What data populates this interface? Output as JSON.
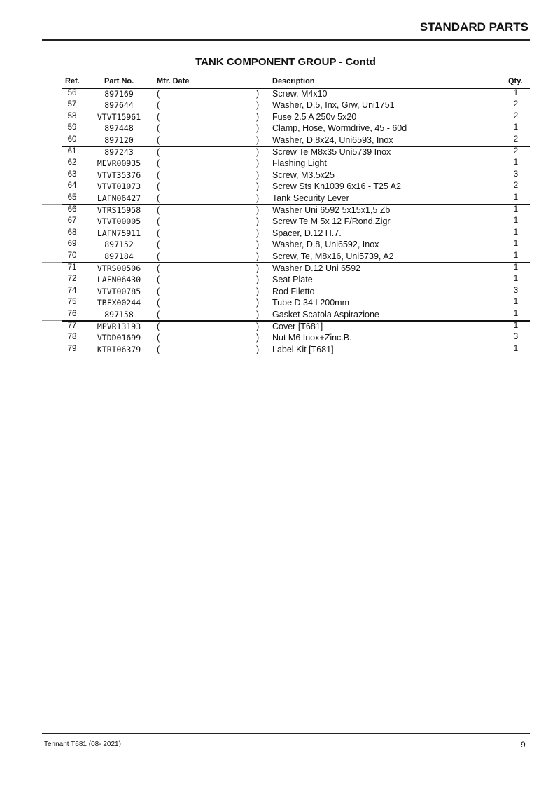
{
  "header": {
    "section_title": "STANDARD PARTS",
    "group_title": "TANK COMPONENT GROUP - Contd"
  },
  "columns": {
    "ref": "Ref.",
    "part_no": "Part No.",
    "mfr_date": "Mfr. Date",
    "description": "Description",
    "qty": "Qty."
  },
  "rows": [
    {
      "ref": "56",
      "part_no": "897169",
      "description": "Screw, M4x10",
      "qty": "1"
    },
    {
      "ref": "57",
      "part_no": "897644",
      "description": "Washer, D.5, Inx, Grw, Uni1751",
      "qty": "2"
    },
    {
      "ref": "58",
      "part_no": "VTVT15961",
      "description": "Fuse 2.5 A 250v 5x20",
      "qty": "2"
    },
    {
      "ref": "59",
      "part_no": "897448",
      "description": "Clamp, Hose, Wormdrive, 45 -  60d",
      "qty": "1"
    },
    {
      "ref": "60",
      "part_no": "897120",
      "description": "Washer, D.8x24, Uni6593, Inox",
      "qty": "2"
    },
    {
      "ref": "61",
      "part_no": "897243",
      "description": "Screw Te M8x35 Uni5739 Inox",
      "qty": "2"
    },
    {
      "ref": "62",
      "part_no": "MEVR00935",
      "description": "Flashing Light",
      "qty": "1"
    },
    {
      "ref": "63",
      "part_no": "VTVT35376",
      "description": "Screw, M3.5x25",
      "qty": "3"
    },
    {
      "ref": "64",
      "part_no": "VTVT01073",
      "description": "Screw Sts Kn1039 6x16 -  T25 A2",
      "qty": "2"
    },
    {
      "ref": "65",
      "part_no": "LAFN06427",
      "description": "Tank Security Lever",
      "qty": "1"
    },
    {
      "ref": "66",
      "part_no": "VTRS15958",
      "description": "Washer Uni 6592 5x15x1,5 Zb",
      "qty": "1"
    },
    {
      "ref": "67",
      "part_no": "VTVT00005",
      "description": "Screw Te M 5x 12 F/Rond.Zigr",
      "qty": "1"
    },
    {
      "ref": "68",
      "part_no": "LAFN75911",
      "description": "Spacer, D.12 H.7.",
      "qty": "1"
    },
    {
      "ref": "69",
      "part_no": "897152",
      "description": "Washer, D.8, Uni6592, Inox",
      "qty": "1"
    },
    {
      "ref": "70",
      "part_no": "897184",
      "description": "Screw, Te, M8x16, Uni5739, A2",
      "qty": "1"
    },
    {
      "ref": "71",
      "part_no": "VTRS00506",
      "description": "Washer D.12 Uni 6592",
      "qty": "1"
    },
    {
      "ref": "72",
      "part_no": "LAFN06430",
      "description": "Seat Plate",
      "qty": "1"
    },
    {
      "ref": "74",
      "part_no": "VTVT00785",
      "description": "Rod Filetto",
      "qty": "3"
    },
    {
      "ref": "75",
      "part_no": "TBFX00244",
      "description": "Tube D 34 L200mm",
      "qty": "1"
    },
    {
      "ref": "76",
      "part_no": "897158",
      "description": "Gasket Scatola Aspirazione",
      "qty": "1"
    },
    {
      "ref": "77",
      "part_no": "MPVR13193",
      "description": "Cover [T681]",
      "qty": "1"
    },
    {
      "ref": "78",
      "part_no": "VTDD01699",
      "description": "Nut M6 Inox+Zinc.B.",
      "qty": "3"
    },
    {
      "ref": "79",
      "part_no": "KTRI06379",
      "description": "Label Kit [T681]",
      "qty": "1"
    }
  ],
  "paren_open": "(",
  "paren_close": ")",
  "footer": {
    "left": "Tennant T681  (08- 2021)",
    "page": "9"
  }
}
